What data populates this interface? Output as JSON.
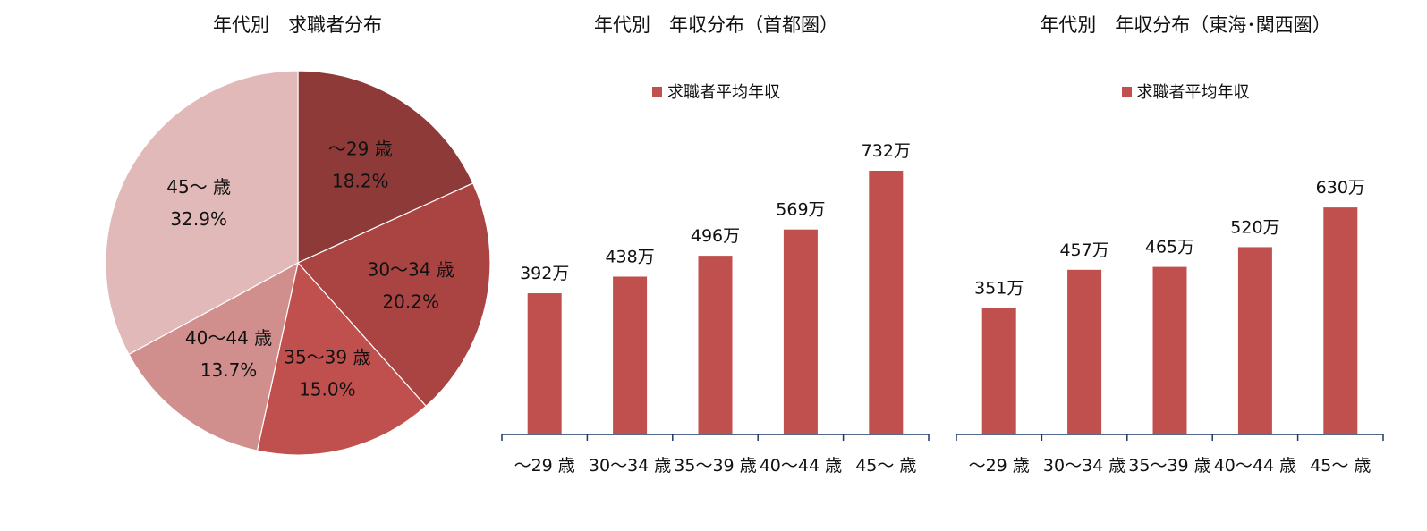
{
  "chart_data": [
    {
      "type": "pie",
      "title": "年代別　求職者分布",
      "categories": [
        "～29 歳",
        "30～34 歳",
        "35～39 歳",
        "40～44 歳",
        "45～ 歳"
      ],
      "values": [
        18.2,
        20.2,
        15.0,
        13.7,
        32.9
      ],
      "value_labels": [
        "18.2%",
        "20.2%",
        "15.0%",
        "13.7%",
        "32.9%"
      ],
      "colors": [
        "#8e3a38",
        "#a94443",
        "#c0504d",
        "#d08f8d",
        "#e0b9b8"
      ]
    },
    {
      "type": "bar",
      "title": "年代別　年収分布（首都圏）",
      "categories": [
        "～29 歳",
        "30～34 歳",
        "35～39 歳",
        "40～44 歳",
        "45～ 歳"
      ],
      "series": [
        {
          "name": "求職者平均年収",
          "values": [
            392,
            438,
            496,
            569,
            732
          ]
        }
      ],
      "value_labels": [
        "392万",
        "438万",
        "496万",
        "569万",
        "732万"
      ],
      "legend": "top-center",
      "color": "#c0504d"
    },
    {
      "type": "bar",
      "title": "年代別　年収分布（東海･関西圏）",
      "categories": [
        "～29 歳",
        "30～34 歳",
        "35～39 歳",
        "40～44 歳",
        "45～ 歳"
      ],
      "series": [
        {
          "name": "求職者平均年収",
          "values": [
            351,
            457,
            465,
            520,
            630
          ]
        }
      ],
      "value_labels": [
        "351万",
        "457万",
        "465万",
        "520万",
        "630万"
      ],
      "legend": "top-center",
      "color": "#c0504d"
    }
  ]
}
